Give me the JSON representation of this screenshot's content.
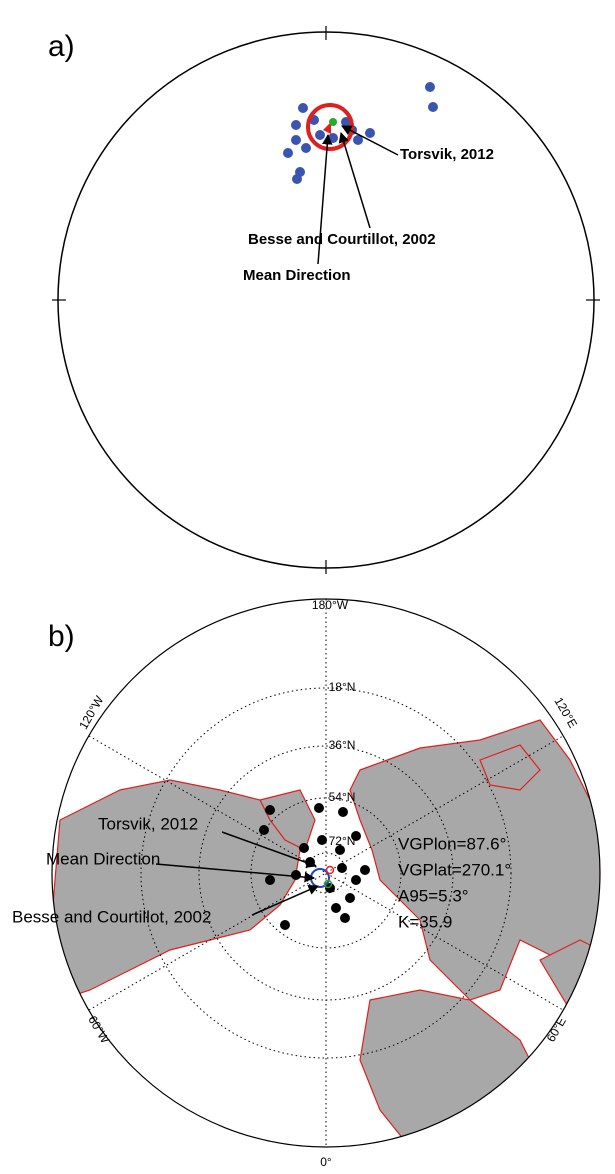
{
  "panel_a": {
    "label": "a)",
    "annotations": [
      "Torsvik, 2012",
      "Besse and Courtillot, 2002",
      "Mean Direction"
    ]
  },
  "panel_b": {
    "label": "b)",
    "longitude_labels": [
      "180°W",
      "120°W",
      "120°E",
      "60°W",
      "60°E",
      "0°"
    ],
    "latitude_labels": [
      "18°N",
      "36°N",
      "54°N",
      "72°N"
    ],
    "annotations": [
      "Torsvik, 2012",
      "Mean Direction",
      "Besse and Courtillot, 2002"
    ],
    "statistics": [
      "VGPlon=87.6°",
      "VGPlat=270.1°",
      "A95=5.3°",
      "K=35.9"
    ]
  }
}
